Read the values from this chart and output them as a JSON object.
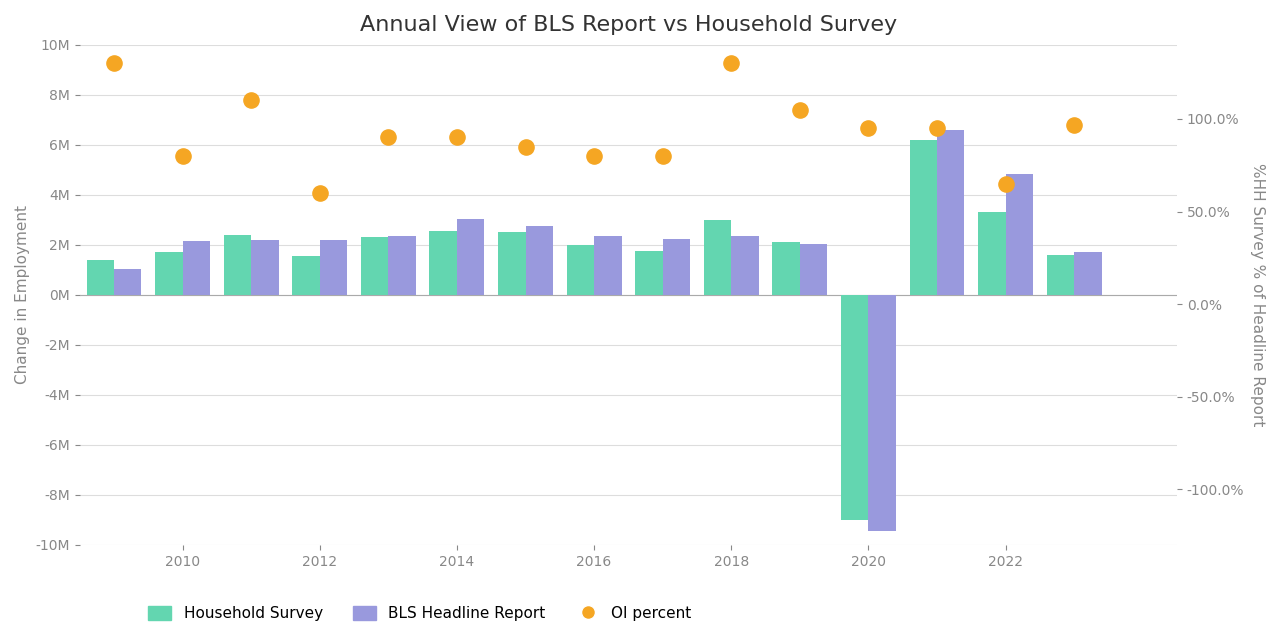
{
  "title": "Annual View of BLS Report vs Household Survey",
  "years": [
    2009,
    2010,
    2011,
    2012,
    2013,
    2014,
    2015,
    2016,
    2017,
    2018,
    2019,
    2020,
    2021,
    2022,
    2023
  ],
  "household_survey": [
    1400000,
    1700000,
    2400000,
    1550000,
    2300000,
    2550000,
    2500000,
    2000000,
    1750000,
    3000000,
    2100000,
    -9000000,
    6200000,
    3300000,
    1600000
  ],
  "bls_headline": [
    1050000,
    2150000,
    2200000,
    2200000,
    2350000,
    3050000,
    2750000,
    2350000,
    2250000,
    2350000,
    2050000,
    -9450000,
    6600000,
    4850000,
    1700000
  ],
  "oi_percent": [
    130,
    80,
    110,
    60,
    90,
    90,
    85,
    80,
    80,
    130,
    105,
    95,
    95,
    65,
    97
  ],
  "bar_width": 0.4,
  "household_color": "#63d6b0",
  "bls_color": "#9999dd",
  "oi_color": "#f5a623",
  "ylabel_left": "Change in Employment",
  "ylabel_right": "%HH Survey % of Headline Report",
  "ylim_left": [
    -10000000,
    10000000
  ],
  "ylim_right": [
    -130,
    140
  ],
  "xtick_positions": [
    2010,
    2012,
    2014,
    2016,
    2018,
    2020,
    2022
  ],
  "xtick_labels": [
    "2010",
    "2012",
    "2014",
    "2016",
    "2018",
    "2020",
    "2022"
  ],
  "background_color": "#ffffff",
  "grid_color": "#dddddd",
  "title_fontsize": 16,
  "label_fontsize": 11,
  "tick_fontsize": 10,
  "legend_labels": [
    "Household Survey",
    "BLS Headline Report",
    "OI percent"
  ]
}
